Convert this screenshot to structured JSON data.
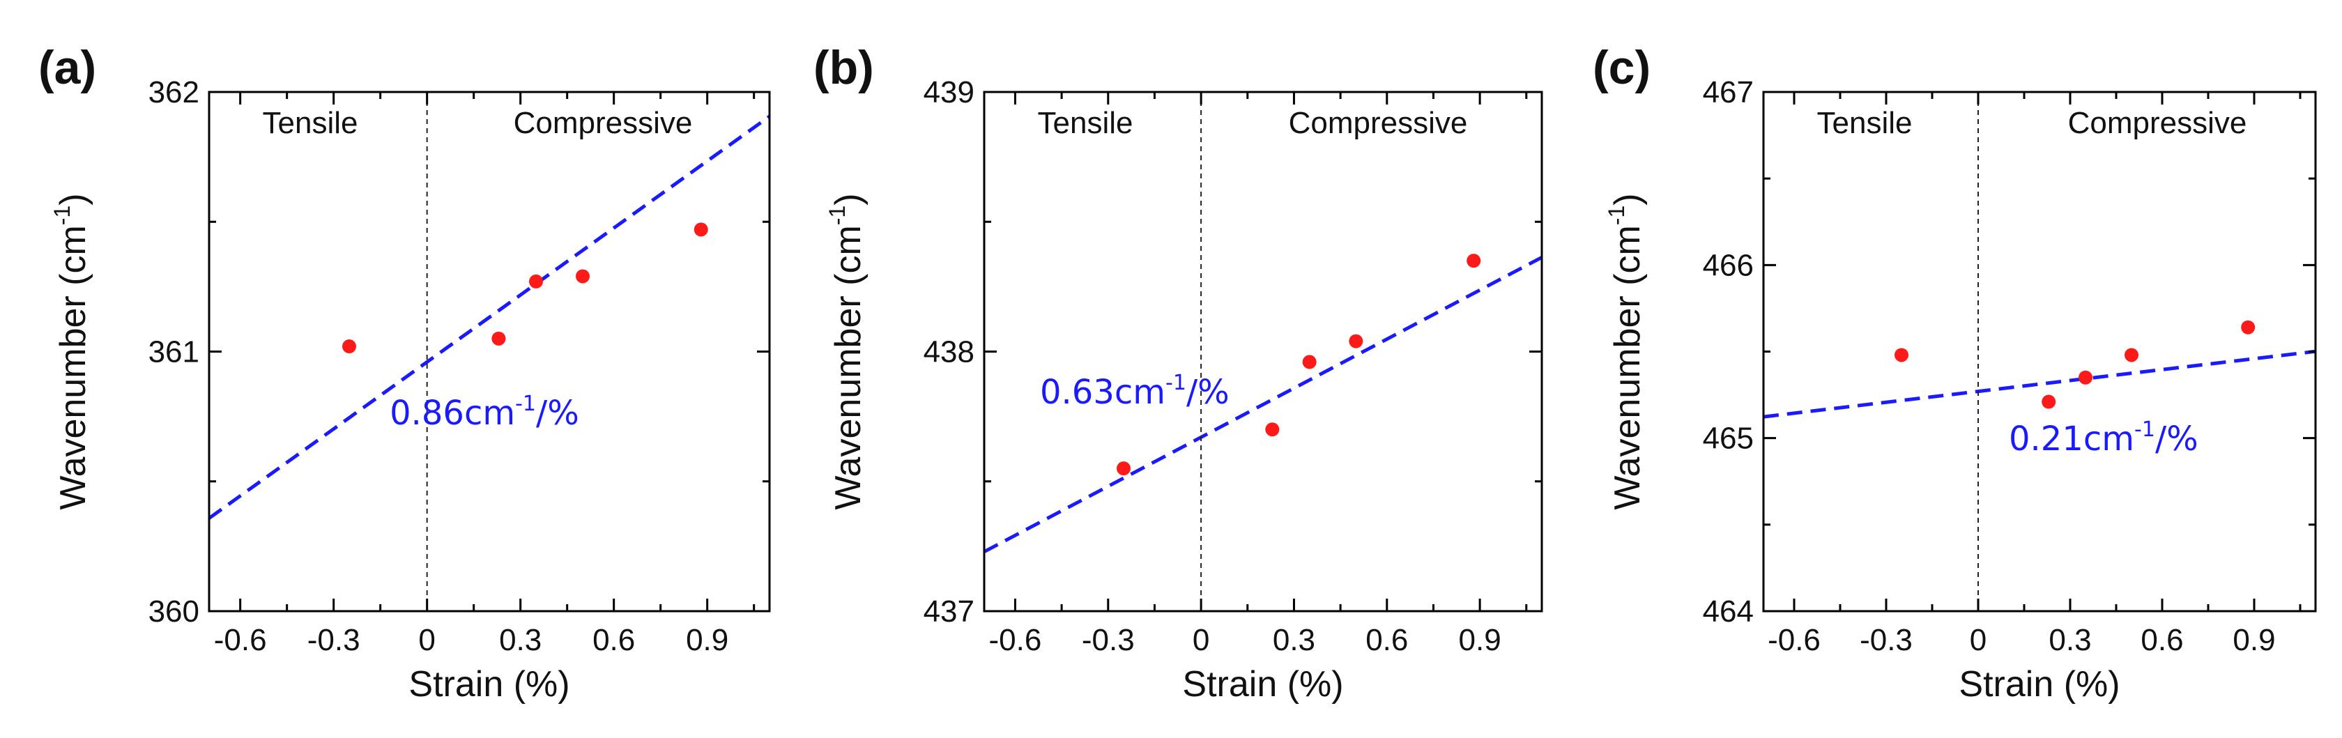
{
  "style": {
    "point_color": "#ff1a1a",
    "fit_color": "#1a1aff",
    "axis_color": "#000000"
  },
  "chart_data": [
    {
      "type": "scatter",
      "panel_label": "(a)",
      "xlabel": "Strain (%)",
      "ylabel_main": "Wavenumber (cm",
      "ylabel_sup": "-1",
      "ylabel_end": ")",
      "xlim": [
        -0.7,
        1.1
      ],
      "ylim": [
        360,
        362
      ],
      "xticks": [
        -0.6,
        -0.3,
        0,
        0.3,
        0.6,
        0.9
      ],
      "xtick_labels": [
        "-0.6",
        "-0.3",
        "0",
        "0.3",
        "0.6",
        "0.9"
      ],
      "yticks": [
        360,
        361,
        362
      ],
      "ytick_labels": [
        "360",
        "361",
        "362"
      ],
      "regions": {
        "left": "Tensile",
        "right": "Compressive"
      },
      "divider_x": 0,
      "x": [
        -0.25,
        0.23,
        0.35,
        0.5,
        0.88
      ],
      "y": [
        361.02,
        361.05,
        361.27,
        361.29,
        361.47
      ],
      "fit": {
        "slope": 0.86,
        "intercept": 360.96
      },
      "slope_label": {
        "prefix": "0.86cm",
        "sup": "-1",
        "suffix": "/%",
        "x": -0.12,
        "y": 360.72
      }
    },
    {
      "type": "scatter",
      "panel_label": "(b)",
      "xlabel": "Strain (%)",
      "ylabel_main": "Wavenumber (cm",
      "ylabel_sup": "-1",
      "ylabel_end": ")",
      "xlim": [
        -0.7,
        1.1
      ],
      "ylim": [
        437,
        439
      ],
      "xticks": [
        -0.6,
        -0.3,
        0,
        0.3,
        0.6,
        0.9
      ],
      "xtick_labels": [
        "-0.6",
        "-0.3",
        "0",
        "0.3",
        "0.6",
        "0.9"
      ],
      "yticks": [
        437,
        438,
        439
      ],
      "ytick_labels": [
        "437",
        "438",
        "439"
      ],
      "regions": {
        "left": "Tensile",
        "right": "Compressive"
      },
      "divider_x": 0,
      "x": [
        -0.25,
        0.23,
        0.35,
        0.5,
        0.88
      ],
      "y": [
        437.55,
        437.7,
        437.96,
        438.04,
        438.35
      ],
      "fit": {
        "slope": 0.63,
        "intercept": 437.67
      },
      "slope_label": {
        "prefix": "0.63cm",
        "sup": "-1",
        "suffix": "/%",
        "x": -0.52,
        "y": 437.8
      }
    },
    {
      "type": "scatter",
      "panel_label": "(c)",
      "xlabel": "Strain (%)",
      "ylabel_main": "Wavenumber (cm",
      "ylabel_sup": "-1",
      "ylabel_end": ")",
      "xlim": [
        -0.7,
        1.1
      ],
      "ylim": [
        464,
        467
      ],
      "xticks": [
        -0.6,
        -0.3,
        0,
        0.3,
        0.6,
        0.9
      ],
      "xtick_labels": [
        "-0.6",
        "-0.3",
        "0",
        "0.3",
        "0.6",
        "0.9"
      ],
      "yticks": [
        464,
        465,
        466,
        467
      ],
      "ytick_labels": [
        "464",
        "465",
        "466",
        "467"
      ],
      "regions": {
        "left": "Tensile",
        "right": "Compressive"
      },
      "divider_x": 0,
      "x": [
        -0.25,
        0.23,
        0.35,
        0.5,
        0.88
      ],
      "y": [
        465.48,
        465.21,
        465.35,
        465.48,
        465.64
      ],
      "fit": {
        "slope": 0.21,
        "intercept": 465.27
      },
      "slope_label": {
        "prefix": "0.21cm",
        "sup": "-1",
        "suffix": "/%",
        "x": 0.1,
        "y": 464.93
      }
    }
  ]
}
